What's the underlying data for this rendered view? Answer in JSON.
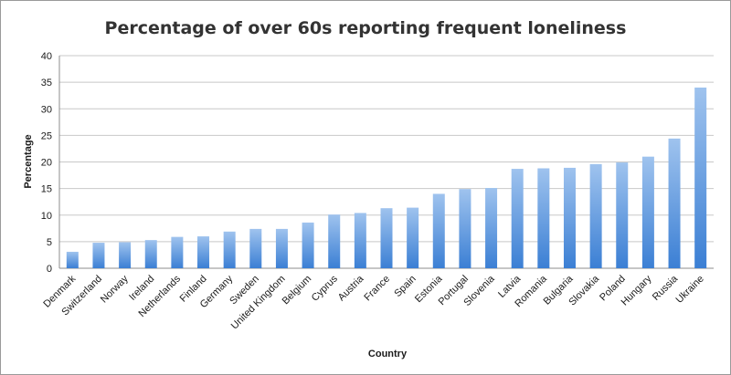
{
  "chart_data": {
    "type": "bar",
    "title": "Percentage of over 60s reporting frequent loneliness",
    "xlabel": "Country",
    "ylabel": "Percentage",
    "ylim": [
      0,
      40
    ],
    "yticks": [
      0,
      5,
      10,
      15,
      20,
      25,
      30,
      35,
      40
    ],
    "categories": [
      "Denmark",
      "Switzerland",
      "Norway",
      "Ireland",
      "Netherlands",
      "Finland",
      "Germany",
      "Sweden",
      "United Kingdom",
      "Belgium",
      "Cyprus",
      "Austria",
      "France",
      "Spain",
      "Estonia",
      "Portugal",
      "Slovenia",
      "Latvia",
      "Romania",
      "Bulgaria",
      "Slovakia",
      "Poland",
      "Hungary",
      "Russia",
      "Ukraine"
    ],
    "values": [
      3.1,
      4.8,
      4.9,
      5.3,
      5.9,
      6.0,
      6.9,
      7.4,
      7.4,
      8.6,
      10.1,
      10.4,
      11.3,
      11.4,
      14.0,
      14.9,
      15.1,
      18.7,
      18.8,
      18.9,
      19.6,
      19.9,
      21.0,
      24.4,
      34.0
    ],
    "grid": true,
    "legend": "none",
    "colors": {
      "bar_top": "#9fc3ee",
      "bar_bottom": "#3b7fd4",
      "grid": "#c8c8c8",
      "axis": "#8c8c8c",
      "title": "#333333",
      "text": "#1a1a1a"
    }
  }
}
